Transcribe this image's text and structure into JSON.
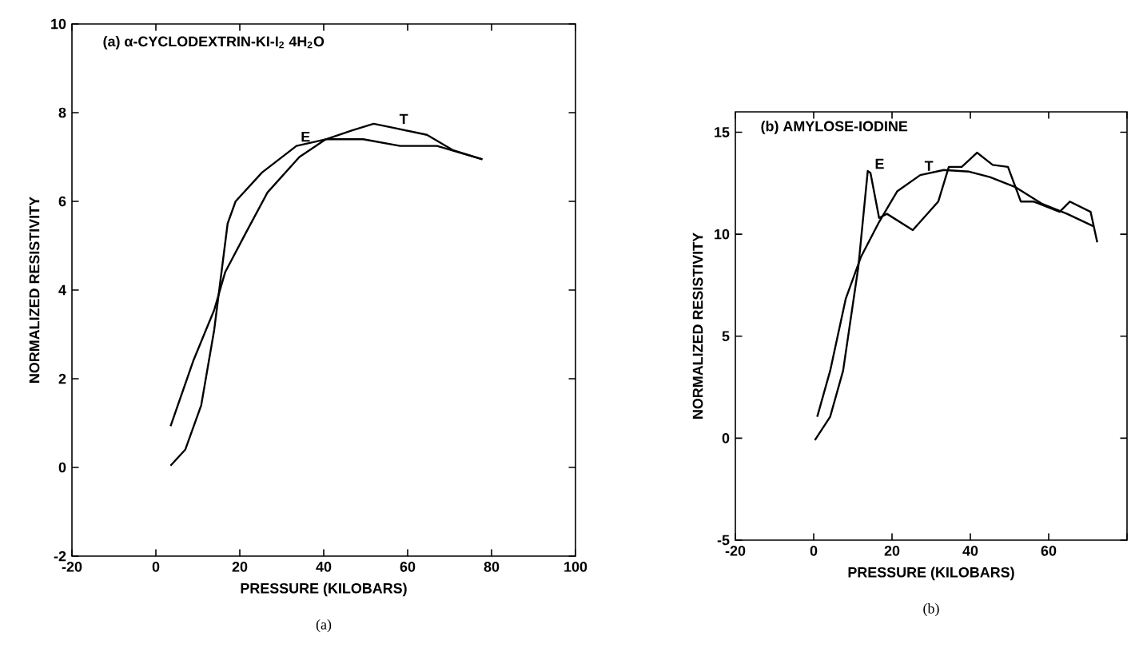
{
  "chart_data": [
    {
      "type": "line",
      "title": "(a) α-CYCLODEXTRIN-KI-I$_{2}$ 4H$_{2}$O",
      "xlabel": "PRESSURE (KILOBARS)",
      "ylabel": "NORMALIZED RESISTIVITY",
      "xlim": [
        -20,
        100
      ],
      "ylim": [
        -2,
        10
      ],
      "xticks": [
        -20,
        0,
        20,
        40,
        60,
        80,
        100
      ],
      "yticks": [
        -2,
        0,
        2,
        4,
        6,
        8,
        10
      ],
      "series": [
        {
          "color": "#000000",
          "x": [
            3.5,
            7,
            10.8,
            13.9,
            17.1,
            19,
            25.3,
            33.5,
            40.5,
            49.4,
            58.2,
            67,
            77.8
          ],
          "values": [
            0.04,
            0.4,
            1.4,
            3.1,
            5.5,
            6.0,
            6.65,
            7.25,
            7.4,
            7.4,
            7.25,
            7.25,
            6.95
          ]
        },
        {
          "color": "#000000",
          "x": [
            3.5,
            8.9,
            13.9,
            16.5,
            21.5,
            26.6,
            34.2,
            40.5,
            46.8,
            51.9,
            57,
            64.6,
            70.9,
            77.8
          ],
          "values": [
            0.93,
            2.4,
            3.55,
            4.4,
            5.3,
            6.2,
            7.0,
            7.4,
            7.6,
            7.75,
            7.65,
            7.5,
            7.15,
            6.95
          ]
        }
      ],
      "annotations": [
        "(a)",
        {
          "text": "E",
          "x": 33.5,
          "y": 7.25
        },
        {
          "text": "T",
          "x": 57,
          "y": 7.65
        }
      ]
    },
    {
      "type": "line",
      "title": "(b) AMYLOSE-IODINE",
      "xlabel": "PRESSURE (KILOBARS)",
      "ylabel": "NORMALIZED RESISTIVITY",
      "xlim": [
        -20,
        80
      ],
      "ylim": [
        -5,
        16
      ],
      "xticks": [
        -20,
        0,
        20,
        40,
        60,
        {
          "value": 80,
          "label": null
        }
      ],
      "yticks": [
        -5,
        0,
        5,
        10,
        15
      ],
      "series": [
        {
          "color": "#000000",
          "x": [
            0.3,
            4.2,
            7.5,
            11.4,
            13.8,
            14.5,
            16.7,
            18.7,
            25.3,
            31.8,
            34.5,
            37.8,
            41.7,
            45.7,
            49.6,
            52.9,
            56.2,
            62.8,
            65.4,
            70.7,
            72.4
          ],
          "values": [
            -0.1,
            1.05,
            3.3,
            8.4,
            13.1,
            13.0,
            10.8,
            11.0,
            10.2,
            11.6,
            13.3,
            13.3,
            14.0,
            13.4,
            13.3,
            11.6,
            11.6,
            11.1,
            11.6,
            11.1,
            9.6
          ]
        },
        {
          "color": "#000000",
          "x": [
            0.9,
            4.2,
            8.2,
            12.1,
            16.7,
            21.3,
            27.2,
            33.2,
            39.7,
            45,
            51.6,
            58.2,
            64.7,
            71.3
          ],
          "values": [
            1.05,
            3.3,
            6.85,
            8.9,
            10.6,
            12.1,
            12.9,
            13.15,
            13.07,
            12.8,
            12.3,
            11.5,
            11.0,
            10.4
          ]
        }
      ],
      "annotations": [
        "(b)",
        {
          "text": "E",
          "x": 14.5,
          "y": 13.0
        },
        {
          "text": "T",
          "x": 27.2,
          "y": 12.9
        }
      ]
    }
  ]
}
